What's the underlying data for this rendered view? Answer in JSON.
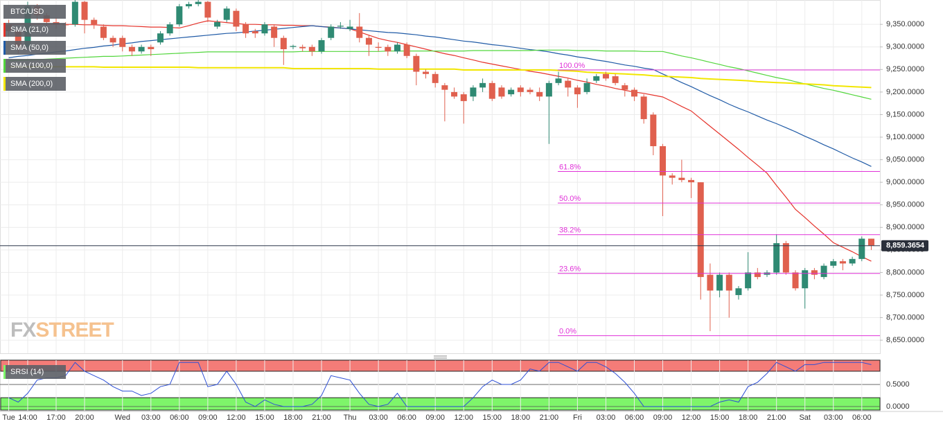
{
  "chart_data": [
    {
      "type": "candlestick",
      "title": "BTC/USD",
      "categories": [
        "Tue",
        null,
        "14:00",
        null,
        null,
        "17:00",
        null,
        null,
        "20:00",
        null,
        null,
        null,
        "Wed",
        null,
        null,
        "03:00",
        null,
        null,
        "06:00",
        null,
        null,
        "09:00",
        null,
        null,
        "12:00",
        null,
        null,
        "15:00",
        null,
        null,
        "18:00",
        null,
        null,
        "21:00",
        null,
        null,
        "Thu",
        null,
        null,
        "03:00",
        null,
        null,
        "06:00",
        null,
        null,
        "09:00",
        null,
        null,
        "12:00",
        null,
        null,
        "15:00",
        null,
        null,
        "18:00",
        null,
        null,
        "21:00",
        null,
        null,
        "Fri",
        null,
        null,
        "03:00",
        null,
        null,
        "06:00",
        null,
        null,
        "09:00",
        null,
        null,
        "12:00",
        null,
        null,
        "15:00",
        null,
        null,
        "18:00",
        null,
        null,
        "21:00",
        null,
        null,
        "Sat",
        null,
        null,
        "03:00",
        null,
        null,
        "06:00",
        null
      ],
      "open": [
        9350,
        9335,
        9300,
        9390,
        9370,
        9355,
        9350,
        9350,
        9400,
        9360,
        9345,
        9320,
        9320,
        9300,
        9290,
        9300,
        9310,
        9330,
        9350,
        9390,
        9395,
        9400,
        9345,
        9360,
        9380,
        9350,
        9335,
        9330,
        9345,
        9320,
        9300,
        9300,
        9300,
        9290,
        9320,
        9345,
        9340,
        9345,
        9320,
        9300,
        9300,
        9290,
        9305,
        9280,
        9245,
        9240,
        9215,
        9200,
        9195,
        9190,
        9210,
        9220,
        9210,
        9195,
        9210,
        9205,
        9200,
        9190,
        9220,
        9225,
        9210,
        9200,
        9225,
        9240,
        9235,
        9215,
        9205,
        9190,
        9150,
        9080,
        9015,
        9010,
        9005,
        9000,
        8795,
        8760,
        8795,
        8750,
        8765,
        8800,
        8795,
        8800,
        8865,
        8800,
        8765,
        8805,
        8790,
        8815,
        8825,
        8820,
        8830,
        8875
      ],
      "high": [
        9360,
        9340,
        9400,
        9395,
        9375,
        9365,
        9355,
        9405,
        9402,
        9365,
        9350,
        9325,
        9325,
        9305,
        9305,
        9305,
        9335,
        9355,
        9395,
        9400,
        9405,
        9402,
        9360,
        9390,
        9385,
        9355,
        9340,
        9355,
        9350,
        9325,
        9305,
        9305,
        9305,
        9320,
        9350,
        9355,
        9360,
        9375,
        9325,
        9310,
        9305,
        9310,
        9310,
        9285,
        9250,
        9245,
        9220,
        9210,
        9200,
        9215,
        9230,
        9225,
        9215,
        9210,
        9215,
        9210,
        9210,
        9225,
        9245,
        9230,
        9215,
        9230,
        9240,
        9245,
        9240,
        9220,
        9210,
        9195,
        9155,
        9085,
        9020,
        9050,
        9010,
        9000,
        8820,
        8800,
        8800,
        8770,
        8845,
        8810,
        8805,
        8885,
        8870,
        8805,
        8810,
        8810,
        8820,
        8830,
        8830,
        8835,
        8880,
        8875
      ],
      "low": [
        9325,
        9285,
        9295,
        9360,
        9345,
        9340,
        9340,
        9345,
        9330,
        9340,
        9315,
        9300,
        9290,
        9280,
        9285,
        9280,
        9305,
        9325,
        9345,
        9385,
        9390,
        9355,
        9340,
        9355,
        9335,
        9320,
        9320,
        9325,
        9300,
        9260,
        9295,
        9290,
        9280,
        9285,
        9315,
        9340,
        9335,
        9310,
        9280,
        9290,
        9280,
        9285,
        9275,
        9215,
        9230,
        9210,
        9135,
        9185,
        9130,
        9180,
        9200,
        9180,
        9185,
        9190,
        9190,
        9195,
        9180,
        9085,
        9215,
        9190,
        9165,
        9195,
        9220,
        9225,
        9215,
        9190,
        9180,
        9130,
        9060,
        8925,
        8995,
        9000,
        8965,
        8740,
        8670,
        8745,
        8700,
        8740,
        8760,
        8785,
        8790,
        8795,
        8795,
        8760,
        8720,
        8785,
        8785,
        8810,
        8805,
        8815,
        8825,
        8850
      ],
      "close": [
        9335,
        9300,
        9390,
        9370,
        9355,
        9350,
        9348,
        9400,
        9360,
        9350,
        9320,
        9310,
        9300,
        9290,
        9300,
        9295,
        9330,
        9350,
        9390,
        9395,
        9400,
        9365,
        9355,
        9385,
        9345,
        9330,
        9330,
        9350,
        9320,
        9295,
        9302,
        9297,
        9290,
        9315,
        9345,
        9347,
        9345,
        9320,
        9305,
        9298,
        9290,
        9305,
        9280,
        9245,
        9240,
        9220,
        9205,
        9190,
        9180,
        9210,
        9220,
        9185,
        9190,
        9205,
        9200,
        9200,
        9190,
        9220,
        9230,
        9210,
        9195,
        9220,
        9235,
        9230,
        9220,
        9205,
        9190,
        9140,
        9080,
        9015,
        9010,
        9005,
        9000,
        8790,
        8760,
        8795,
        8760,
        8765,
        8800,
        8790,
        8800,
        8865,
        8800,
        8765,
        8805,
        8795,
        8815,
        8825,
        8820,
        8830,
        8875,
        8860
      ],
      "up_color": "#2f8a73",
      "down_color": "#e0604e",
      "overlays": [
        {
          "name": "SMA (21,0)",
          "color": "#e5322a",
          "values": [
            9350,
            9350,
            9350,
            9350,
            9350,
            9350,
            9350,
            9350,
            9349,
            9349,
            9348,
            9347,
            9347,
            9346,
            9345,
            9344,
            9344,
            9343,
            9342,
            9347,
            9353,
            9358,
            9356,
            9354,
            9352,
            9350,
            9350,
            9349,
            9349,
            9348,
            9348,
            9347,
            9347,
            9345,
            9344,
            9342,
            9340,
            9333,
            9326,
            9319,
            9314,
            9310,
            9305,
            9300,
            9295,
            9290,
            9285,
            9281,
            9276,
            9271,
            9266,
            9262,
            9258,
            9254,
            9250,
            9246,
            9243,
            9239,
            9235,
            9231,
            9226,
            9222,
            9217,
            9213,
            9208,
            9204,
            9200,
            9197,
            9193,
            9189,
            9179,
            9168,
            9158,
            9141,
            9124,
            9107,
            9090,
            9073,
            9055,
            9038,
            9020,
            8993,
            8967,
            8940,
            8922,
            8903,
            8885,
            8866,
            8856,
            8846,
            8835,
            8825
          ]
        },
        {
          "name": "SMA (50,0)",
          "color": "#1f5aa6",
          "values": [
            9276,
            9279,
            9281,
            9284,
            9286,
            9289,
            9291,
            9294,
            9297,
            9299,
            9302,
            9304,
            9307,
            9309,
            9312,
            9314,
            9316,
            9318,
            9320,
            9322,
            9324,
            9326,
            9328,
            9330,
            9331,
            9333,
            9335,
            9337,
            9339,
            9341,
            9343,
            9345,
            9347,
            9345,
            9343,
            9342,
            9340,
            9338,
            9336,
            9334,
            9332,
            9331,
            9329,
            9327,
            9324,
            9322,
            9319,
            9316,
            9313,
            9311,
            9308,
            9305,
            9303,
            9300,
            9297,
            9294,
            9292,
            9289,
            9285,
            9282,
            9278,
            9275,
            9271,
            9268,
            9264,
            9260,
            9257,
            9253,
            9250,
            9240,
            9231,
            9221,
            9212,
            9202,
            9192,
            9183,
            9173,
            9164,
            9156,
            9147,
            9138,
            9130,
            9121,
            9112,
            9102,
            9093,
            9083,
            9074,
            9064,
            9054,
            9045,
            9035
          ]
        },
        {
          "name": "SMA (100,0)",
          "color": "#52d63c",
          "values": [
            9269,
            9270,
            9271,
            9272,
            9273,
            9274,
            9275,
            9276,
            9277,
            9278,
            9279,
            9279,
            9280,
            9281,
            9282,
            9283,
            9284,
            9285,
            9286,
            9287,
            9288,
            9289,
            9289,
            9289,
            9289,
            9289,
            9289,
            9289,
            9289,
            9289,
            9289,
            9290,
            9290,
            9290,
            9290,
            9290,
            9290,
            9290,
            9290,
            9290,
            9291,
            9291,
            9291,
            9291,
            9291,
            9291,
            9291,
            9291,
            9291,
            9292,
            9292,
            9292,
            9292,
            9292,
            9292,
            9292,
            9293,
            9293,
            9293,
            9293,
            9292,
            9292,
            9292,
            9291,
            9291,
            9291,
            9291,
            9290,
            9290,
            9290,
            9285,
            9280,
            9276,
            9271,
            9266,
            9261,
            9256,
            9252,
            9247,
            9242,
            9237,
            9232,
            9228,
            9223,
            9218,
            9213,
            9208,
            9204,
            9199,
            9194,
            9189,
            9184
          ]
        },
        {
          "name": "SMA (200,0)",
          "color": "#f2e600",
          "values": [
            9256,
            9256,
            9256,
            9256,
            9256,
            9256,
            9256,
            9256,
            9256,
            9256,
            9255,
            9255,
            9255,
            9255,
            9255,
            9255,
            9255,
            9255,
            9255,
            9255,
            9254,
            9254,
            9254,
            9254,
            9254,
            9254,
            9254,
            9254,
            9254,
            9254,
            9252,
            9252,
            9252,
            9252,
            9252,
            9252,
            9252,
            9252,
            9252,
            9251,
            9251,
            9251,
            9251,
            9251,
            9251,
            9251,
            9251,
            9251,
            9249,
            9249,
            9249,
            9249,
            9249,
            9249,
            9249,
            9249,
            9249,
            9249,
            9248,
            9247,
            9246,
            9244,
            9243,
            9242,
            9241,
            9240,
            9239,
            9238,
            9236,
            9235,
            9234,
            9233,
            9232,
            9230,
            9229,
            9228,
            9227,
            9226,
            9225,
            9223,
            9222,
            9221,
            9220,
            9219,
            9218,
            9217,
            9216,
            9214,
            9213,
            9212,
            9211,
            9210
          ]
        }
      ],
      "fib_color": "#e030d8",
      "fib_levels": [
        {
          "label": "100.0%",
          "value": 9249
        },
        {
          "label": "61.8%",
          "value": 9024
        },
        {
          "label": "50.0%",
          "value": 8954
        },
        {
          "label": "38.2%",
          "value": 8884
        },
        {
          "label": "23.6%",
          "value": 8798
        },
        {
          "label": "0.0%",
          "value": 8660
        }
      ],
      "last_price": {
        "value": 8859.3654,
        "label": "8,859.3654"
      },
      "ylim": [
        8621,
        9404
      ],
      "yticks": [
        {
          "value": 8650,
          "label": "8,650.0000"
        },
        {
          "value": 8700,
          "label": "8,700.0000"
        },
        {
          "value": 8750,
          "label": "8,750.0000"
        },
        {
          "value": 8800,
          "label": "8,800.0000"
        },
        {
          "value": 8850,
          "label": "8,850.0000"
        },
        {
          "value": 8900,
          "label": "8,900.0000"
        },
        {
          "value": 8950,
          "label": "8,950.0000"
        },
        {
          "value": 9000,
          "label": "9,000.0000"
        },
        {
          "value": 9050,
          "label": "9,050.0000"
        },
        {
          "value": 9100,
          "label": "9,100.0000"
        },
        {
          "value": 9150,
          "label": "9,150.0000"
        },
        {
          "value": 9200,
          "label": "9,200.0000"
        },
        {
          "value": 9250,
          "label": "9,250.0000"
        },
        {
          "value": 9300,
          "label": "9,300.0000"
        },
        {
          "value": 9350,
          "label": "9,350.0000"
        }
      ],
      "grid": true,
      "watermark": [
        "FX",
        "STREET"
      ]
    },
    {
      "type": "line",
      "series": [
        {
          "name": "SRSI (14)",
          "color": "#2d4fd6",
          "values": [
            0.2,
            0.1,
            0.3,
            0.6,
            0.65,
            0.65,
            0.7,
            1.0,
            0.8,
            0.7,
            0.6,
            0.45,
            0.35,
            0.35,
            0.25,
            0.3,
            0.45,
            0.5,
            1.0,
            1.0,
            1.0,
            0.45,
            0.5,
            0.8,
            0.5,
            0.1,
            0.0,
            0.15,
            0.05,
            0.0,
            0.0,
            0.0,
            0.05,
            0.25,
            0.7,
            0.65,
            0.6,
            0.3,
            0.05,
            0.0,
            0.05,
            0.3,
            0.0,
            0.0,
            0.0,
            0.0,
            0.0,
            0.0,
            0.0,
            0.2,
            0.45,
            0.6,
            0.5,
            0.5,
            0.6,
            0.85,
            0.8,
            1.0,
            1.0,
            0.9,
            0.8,
            1.0,
            1.0,
            0.9,
            0.75,
            0.55,
            0.3,
            0.0,
            0.0,
            0.0,
            0.0,
            0.0,
            0.0,
            0.0,
            0.0,
            0.1,
            0.15,
            0.1,
            0.45,
            0.55,
            0.75,
            1.0,
            0.9,
            0.8,
            0.95,
            0.95,
            1.0,
            1.0,
            1.0,
            1.0,
            1.0,
            0.95
          ]
        }
      ],
      "bands": [
        {
          "from": 0.8,
          "to": 1.05,
          "color": "#f47c78"
        },
        {
          "from": -0.08,
          "to": 0.2,
          "color": "#7ef56a"
        }
      ],
      "ylim": [
        -0.08,
        1.05
      ],
      "yticks": [
        {
          "value": 0,
          "label": "0.0000"
        },
        {
          "value": 0.5,
          "label": "0.5000"
        }
      ]
    }
  ]
}
